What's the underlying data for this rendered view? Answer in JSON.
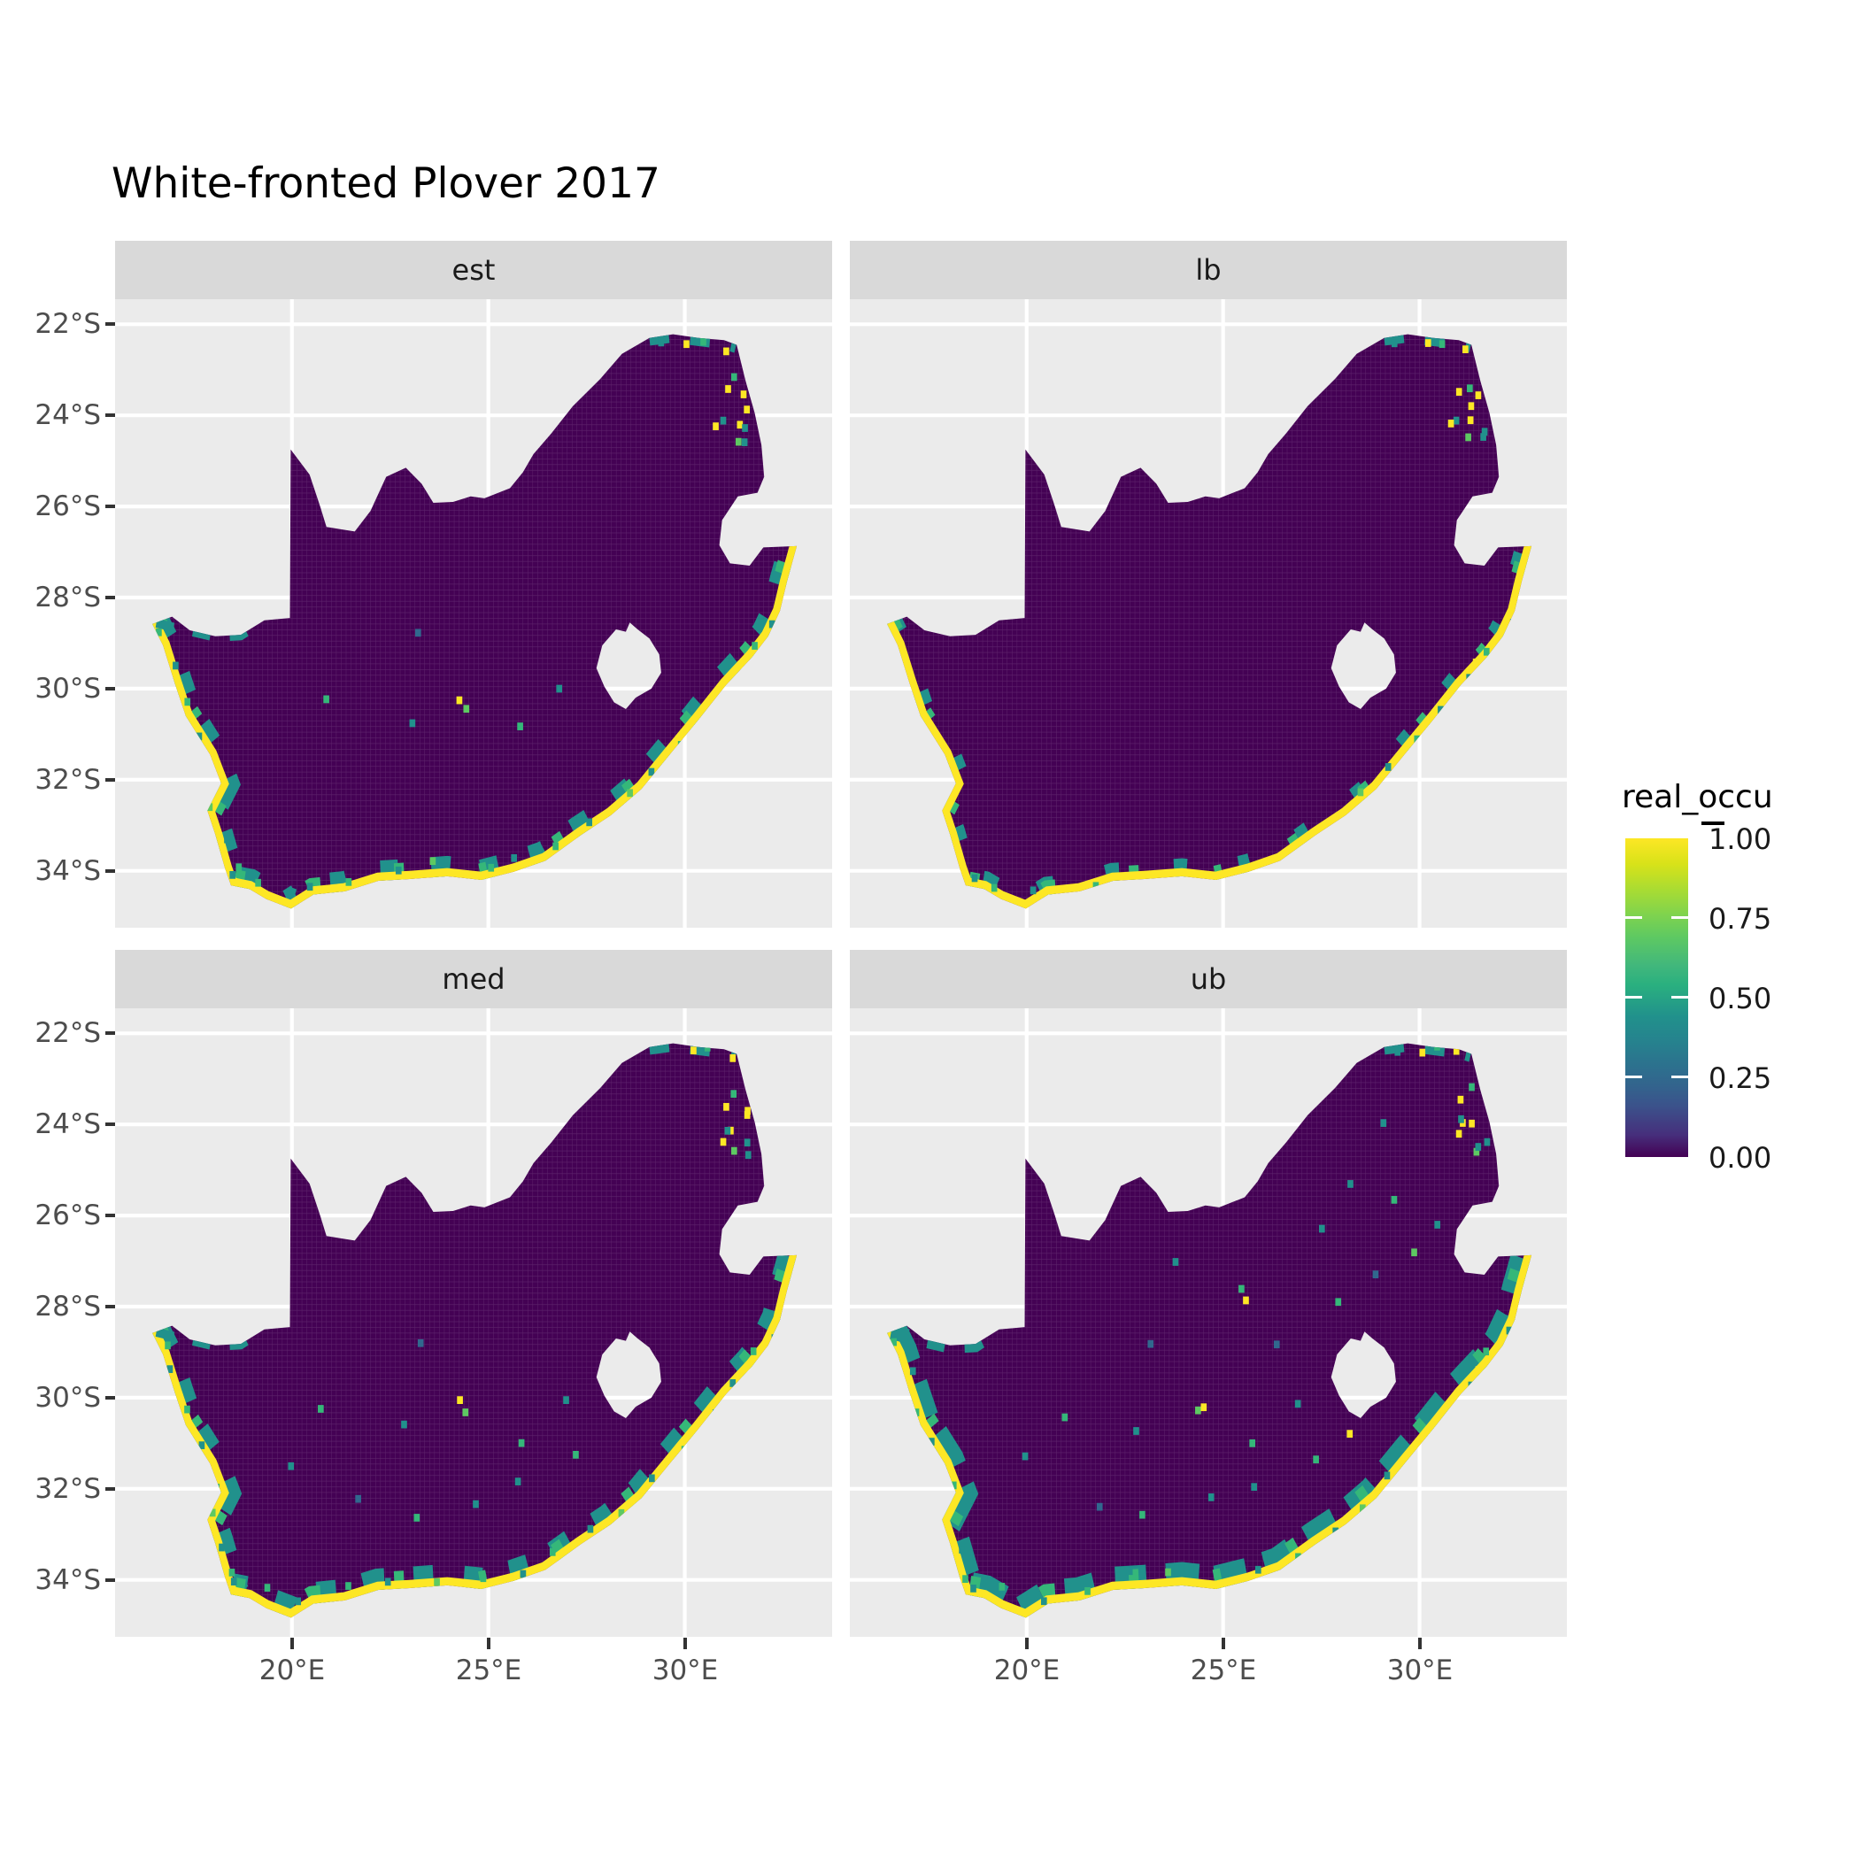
{
  "title": "White-fronted Plover 2017",
  "legend": {
    "title": "real_occu",
    "labels": [
      "1.00",
      "0.75",
      "0.50",
      "0.25",
      "0.00"
    ],
    "values": [
      1.0,
      0.75,
      0.5,
      0.25,
      0.0
    ]
  },
  "colors": {
    "background": "#FFFFFF",
    "panel_bg": "#EBEBEB",
    "strip_bg": "#D9D9D9",
    "strip_text": "#1A1A1A",
    "grid": "#FFFFFF",
    "axis_text": "#4D4D4D",
    "tick": "#333333",
    "map_fill": "#440154",
    "coast": "#FDE725",
    "fringe_teal": "#21918C",
    "fringe_green": "#35B779",
    "speckle_palette": [
      "#21918c",
      "#35b779",
      "#5ec962",
      "#fde725",
      "#31688e"
    ]
  },
  "chart_data": {
    "type": "heatmap",
    "title": "White-fronted Plover 2017",
    "region": "South Africa",
    "fill_variable": "real_occu",
    "fill_range": [
      0,
      1
    ],
    "legend_breaks": [
      1.0,
      0.75,
      0.5,
      0.25,
      0.0
    ],
    "colormap": "viridis",
    "legend_position": "right",
    "grid": "major-white-on-gray",
    "facets": [
      {
        "label": "est",
        "speckle_count": 48,
        "fringe_width": 0.55,
        "fringe_dash": "0.45 0.85",
        "west_band_width": 0.2,
        "seed": 3
      },
      {
        "label": "lb",
        "speckle_count": 27,
        "fringe_width": 0.45,
        "fringe_dash": "0.3 1.4",
        "west_band_width": 0,
        "seed": 7
      },
      {
        "label": "med",
        "speckle_count": 54,
        "fringe_width": 0.6,
        "fringe_dash": "0.5 0.75",
        "west_band_width": 0.2,
        "seed": 11
      },
      {
        "label": "ub",
        "speckle_count": 67,
        "fringe_width": 0.68,
        "fringe_dash": "0.8 0.5",
        "west_band_width": 0.32,
        "seed": 17
      }
    ],
    "x": {
      "label": "",
      "ticks": [
        20,
        25,
        30
      ],
      "tick_labels": [
        "20°E",
        "25°E",
        "30°E"
      ],
      "range": [
        15.5,
        33.75
      ]
    },
    "y": {
      "label": "",
      "ticks": [
        22,
        24,
        26,
        28,
        30,
        32,
        34
      ],
      "tick_labels": [
        "22°S",
        "24°S",
        "26°S",
        "28°S",
        "30°S",
        "32°S",
        "34°S"
      ],
      "range": [
        21.45,
        35.25
      ]
    },
    "map_outline": [
      [
        16.45,
        28.58
      ],
      [
        16.95,
        28.42
      ],
      [
        17.4,
        28.72
      ],
      [
        18.05,
        28.85
      ],
      [
        18.7,
        28.82
      ],
      [
        19.3,
        28.5
      ],
      [
        19.95,
        28.45
      ],
      [
        19.97,
        24.75
      ],
      [
        20.45,
        25.3
      ],
      [
        20.72,
        26.0
      ],
      [
        20.88,
        26.45
      ],
      [
        21.6,
        26.55
      ],
      [
        22.0,
        26.1
      ],
      [
        22.4,
        25.35
      ],
      [
        22.9,
        25.15
      ],
      [
        23.3,
        25.5
      ],
      [
        23.6,
        25.92
      ],
      [
        24.1,
        25.9
      ],
      [
        24.55,
        25.78
      ],
      [
        24.9,
        25.82
      ],
      [
        25.55,
        25.6
      ],
      [
        25.88,
        25.25
      ],
      [
        26.15,
        24.85
      ],
      [
        26.6,
        24.4
      ],
      [
        27.15,
        23.8
      ],
      [
        27.85,
        23.2
      ],
      [
        28.4,
        22.65
      ],
      [
        29.1,
        22.3
      ],
      [
        29.7,
        22.22
      ],
      [
        30.35,
        22.3
      ],
      [
        31.0,
        22.35
      ],
      [
        31.32,
        22.45
      ],
      [
        31.55,
        23.25
      ],
      [
        31.78,
        23.95
      ],
      [
        31.95,
        24.65
      ],
      [
        32.02,
        25.35
      ],
      [
        31.85,
        25.7
      ],
      [
        31.35,
        25.78
      ],
      [
        30.95,
        26.3
      ],
      [
        30.88,
        26.85
      ],
      [
        31.15,
        27.25
      ],
      [
        31.65,
        27.3
      ],
      [
        32.0,
        26.9
      ],
      [
        32.85,
        26.87
      ],
      [
        32.6,
        27.65
      ],
      [
        32.42,
        28.3
      ],
      [
        32.12,
        28.85
      ],
      [
        31.72,
        29.3
      ],
      [
        31.05,
        29.92
      ],
      [
        30.35,
        30.68
      ],
      [
        29.68,
        31.38
      ],
      [
        28.9,
        32.2
      ],
      [
        28.12,
        32.78
      ],
      [
        27.35,
        33.22
      ],
      [
        26.45,
        33.78
      ],
      [
        25.65,
        34.02
      ],
      [
        24.82,
        34.2
      ],
      [
        23.95,
        34.12
      ],
      [
        23.0,
        34.18
      ],
      [
        22.2,
        34.22
      ],
      [
        21.35,
        34.45
      ],
      [
        20.55,
        34.52
      ],
      [
        19.98,
        34.83
      ],
      [
        19.35,
        34.62
      ],
      [
        18.92,
        34.4
      ],
      [
        18.45,
        34.32
      ],
      [
        18.3,
        33.95
      ],
      [
        18.05,
        33.2
      ],
      [
        17.85,
        32.68
      ],
      [
        18.2,
        32.08
      ],
      [
        17.92,
        31.45
      ],
      [
        17.3,
        30.6
      ],
      [
        17.02,
        29.88
      ],
      [
        16.72,
        29.05
      ]
    ],
    "lesotho_hole": [
      [
        27.75,
        29.55
      ],
      [
        27.9,
        29.05
      ],
      [
        28.25,
        28.7
      ],
      [
        28.5,
        28.75
      ],
      [
        28.6,
        28.55
      ],
      [
        28.8,
        28.7
      ],
      [
        29.1,
        28.9
      ],
      [
        29.35,
        29.25
      ],
      [
        29.4,
        29.65
      ],
      [
        29.15,
        30.0
      ],
      [
        28.75,
        30.2
      ],
      [
        28.5,
        30.45
      ],
      [
        28.2,
        30.3
      ],
      [
        27.95,
        29.95
      ]
    ],
    "coastline": [
      [
        16.45,
        28.58
      ],
      [
        16.72,
        29.05
      ],
      [
        17.02,
        29.88
      ],
      [
        17.3,
        30.6
      ],
      [
        17.92,
        31.45
      ],
      [
        18.2,
        32.08
      ],
      [
        17.85,
        32.68
      ],
      [
        18.05,
        33.2
      ],
      [
        18.3,
        33.95
      ],
      [
        18.45,
        34.32
      ],
      [
        18.92,
        34.4
      ],
      [
        19.35,
        34.62
      ],
      [
        19.98,
        34.83
      ],
      [
        20.55,
        34.52
      ],
      [
        21.35,
        34.45
      ],
      [
        22.2,
        34.22
      ],
      [
        23.0,
        34.18
      ],
      [
        23.95,
        34.12
      ],
      [
        24.82,
        34.2
      ],
      [
        25.65,
        34.02
      ],
      [
        26.45,
        33.78
      ],
      [
        27.35,
        33.22
      ],
      [
        28.12,
        32.78
      ],
      [
        28.9,
        32.2
      ],
      [
        29.68,
        31.38
      ],
      [
        30.35,
        30.68
      ],
      [
        31.05,
        29.92
      ],
      [
        31.72,
        29.3
      ],
      [
        32.12,
        28.85
      ],
      [
        32.42,
        28.3
      ],
      [
        32.6,
        27.65
      ],
      [
        32.85,
        26.87
      ]
    ],
    "zim_band": [
      [
        29.1,
        22.32
      ],
      [
        29.7,
        22.25
      ],
      [
        30.35,
        22.33
      ],
      [
        31.0,
        22.4
      ],
      [
        31.3,
        22.48
      ]
    ],
    "orange_band": [
      [
        16.55,
        28.56
      ],
      [
        17.4,
        28.74
      ],
      [
        18.05,
        28.87
      ],
      [
        18.7,
        28.84
      ],
      [
        19.25,
        28.53
      ]
    ],
    "speckles": [
      [
        31.45,
        23.85,
        3
      ],
      [
        31.25,
        24.1,
        3
      ],
      [
        31.6,
        24.3,
        0
      ],
      [
        31.15,
        23.55,
        3
      ],
      [
        31.4,
        23.3,
        1
      ],
      [
        31.0,
        24.0,
        0
      ],
      [
        31.65,
        23.65,
        3
      ],
      [
        31.3,
        24.5,
        2
      ],
      [
        30.85,
        24.3,
        3
      ],
      [
        31.5,
        24.62,
        0
      ],
      [
        30.1,
        22.35,
        3
      ],
      [
        30.6,
        22.4,
        1
      ],
      [
        29.45,
        22.4,
        0
      ],
      [
        31.1,
        22.5,
        3
      ],
      [
        32.25,
        28.6,
        0
      ],
      [
        31.85,
        29.1,
        1
      ],
      [
        31.3,
        29.75,
        0
      ],
      [
        30.7,
        30.45,
        0
      ],
      [
        30.0,
        31.15,
        1
      ],
      [
        29.3,
        31.85,
        0
      ],
      [
        28.55,
        32.4,
        2
      ],
      [
        30.45,
        30.85,
        3
      ],
      [
        31.5,
        29.5,
        3
      ],
      [
        18.65,
        34.05,
        0
      ],
      [
        19.3,
        34.3,
        1
      ],
      [
        20.3,
        34.5,
        0
      ],
      [
        21.6,
        34.2,
        1
      ],
      [
        22.6,
        33.95,
        0
      ],
      [
        23.6,
        33.9,
        2
      ],
      [
        24.9,
        34.0,
        1
      ],
      [
        25.8,
        33.8,
        0
      ],
      [
        26.8,
        33.45,
        1
      ],
      [
        27.7,
        32.85,
        0
      ],
      [
        16.75,
        28.8,
        1
      ],
      [
        17.0,
        29.5,
        0
      ],
      [
        17.3,
        30.2,
        1
      ],
      [
        17.6,
        31.0,
        0
      ],
      [
        18.1,
        31.9,
        1
      ],
      [
        18.0,
        32.5,
        2
      ],
      [
        18.3,
        33.3,
        0
      ],
      [
        18.55,
        33.85,
        1
      ],
      [
        24.45,
        30.35,
        2
      ],
      [
        24.35,
        30.15,
        3
      ],
      [
        22.9,
        30.7,
        0
      ],
      [
        25.7,
        30.9,
        1
      ],
      [
        26.9,
        30.0,
        0
      ],
      [
        23.3,
        28.9,
        4
      ],
      [
        20.9,
        30.3,
        1
      ],
      [
        19.9,
        31.4,
        0
      ],
      [
        21.8,
        32.3,
        4
      ],
      [
        23.1,
        32.6,
        1
      ],
      [
        24.6,
        32.3,
        0
      ],
      [
        25.9,
        31.9,
        0
      ],
      [
        27.2,
        31.4,
        1
      ],
      [
        28.3,
        30.9,
        3
      ],
      [
        26.3,
        28.8,
        4
      ],
      [
        27.8,
        27.9,
        1
      ],
      [
        28.9,
        27.4,
        4
      ],
      [
        29.8,
        26.9,
        2
      ],
      [
        30.4,
        26.3,
        0
      ],
      [
        29.4,
        25.6,
        1
      ],
      [
        28.4,
        25.2,
        0
      ],
      [
        27.4,
        26.3,
        0
      ],
      [
        25.4,
        27.5,
        1
      ],
      [
        23.9,
        27.0,
        0
      ],
      [
        25.45,
        27.95,
        3
      ],
      [
        29.2,
        23.9,
        0
      ]
    ]
  }
}
